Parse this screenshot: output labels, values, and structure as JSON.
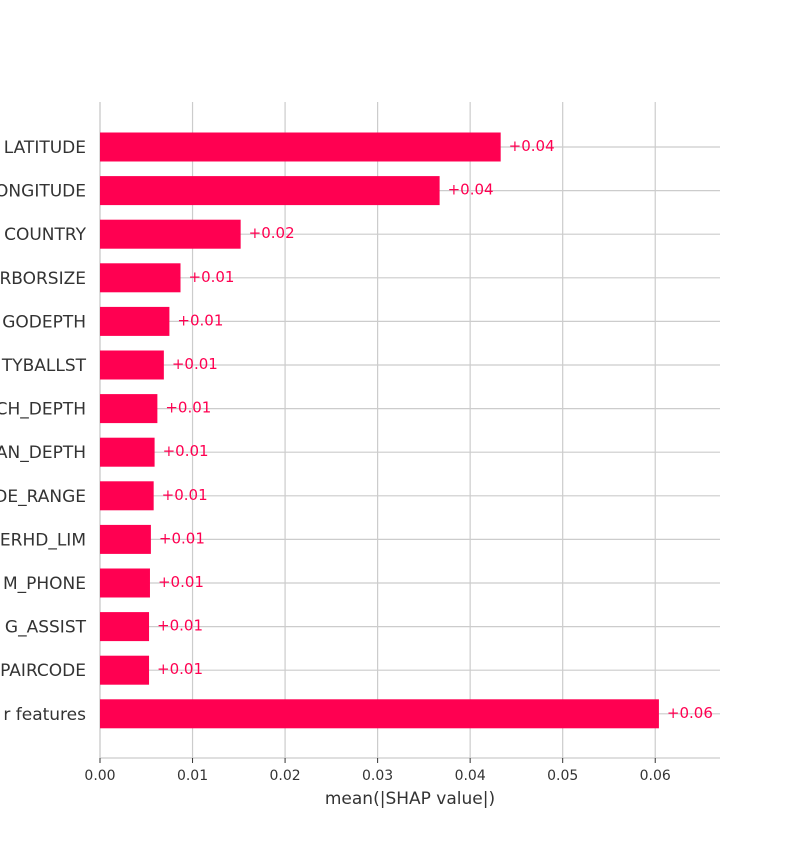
{
  "chart_data": {
    "type": "bar",
    "orientation": "horizontal",
    "title": "",
    "xlabel": "mean(|SHAP value|)",
    "ylabel": "",
    "xlim": [
      0.0,
      0.067
    ],
    "xticks": [
      0.0,
      0.01,
      0.02,
      0.03,
      0.04,
      0.05,
      0.06
    ],
    "xtick_labels": [
      "0.00",
      "0.01",
      "0.02",
      "0.03",
      "0.04",
      "0.05",
      "0.06"
    ],
    "grid": true,
    "categories": [
      "LATITUDE",
      "ONGITUDE",
      "COUNTRY",
      "RBORSIZE",
      "GODEPTH",
      "TYBALLST",
      "CH_DEPTH",
      "AN_DEPTH",
      "DE_RANGE",
      "ERHD_LIM",
      "M_PHONE",
      "G_ASSIST",
      "PAIRCODE",
      "r features"
    ],
    "values": [
      0.0433,
      0.0367,
      0.0152,
      0.0087,
      0.0075,
      0.0069,
      0.0062,
      0.0059,
      0.0058,
      0.0055,
      0.0054,
      0.0053,
      0.0053,
      0.0604
    ],
    "data_labels": [
      "+0.04",
      "+0.04",
      "+0.02",
      "+0.01",
      "+0.01",
      "+0.01",
      "+0.01",
      "+0.01",
      "+0.01",
      "+0.01",
      "+0.01",
      "+0.01",
      "+0.01",
      "+0.06"
    ],
    "colors": {
      "bar": "#ff0051",
      "grid": "#cccccc",
      "axis": "#cccccc",
      "text": "#333333"
    }
  }
}
